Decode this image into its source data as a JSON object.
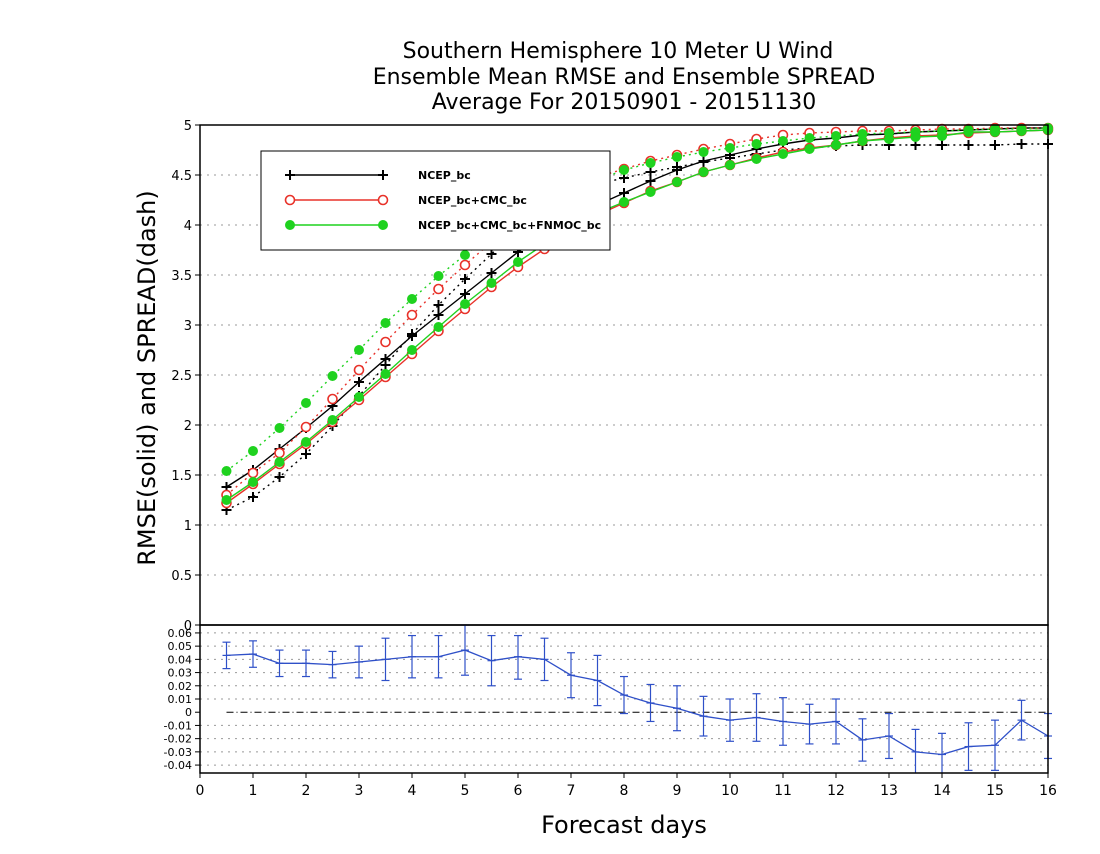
{
  "title_lines": [
    "Southern Hemisphere 10 Meter U Wind",
    "Ensemble Mean RMSE and Ensemble SPREAD",
    "Average For 20150901 - 20151130"
  ],
  "chart_data": [
    {
      "type": "line",
      "ylabel": "RMSE(solid) and SPREAD(dash)",
      "ylim": [
        0,
        5
      ],
      "yticks": [
        0,
        0.5,
        1,
        1.5,
        2,
        2.5,
        3,
        3.5,
        4,
        4.5,
        5
      ],
      "xlim": [
        0,
        16
      ],
      "grid": "horizontal dotted",
      "legend_position": "top-left",
      "x": [
        0.5,
        1,
        1.5,
        2,
        2.5,
        3,
        3.5,
        4,
        4.5,
        5,
        5.5,
        6,
        6.5,
        7,
        7.5,
        8,
        8.5,
        9,
        9.5,
        10,
        10.5,
        11,
        11.5,
        12,
        12.5,
        13,
        13.5,
        14,
        14.5,
        15,
        15.5,
        16
      ],
      "series": [
        {
          "name": "NCEP_bc",
          "color": "#000000",
          "marker": "plus",
          "rmse": [
            1.38,
            1.55,
            1.76,
            1.97,
            2.19,
            2.43,
            2.66,
            2.89,
            3.1,
            3.31,
            3.52,
            3.73,
            3.91,
            4.07,
            4.2,
            4.32,
            4.44,
            4.55,
            4.64,
            4.7,
            4.76,
            4.81,
            4.85,
            4.87,
            4.9,
            4.91,
            4.93,
            4.94,
            4.95,
            4.96,
            4.97,
            4.97
          ],
          "spread": [
            1.15,
            1.28,
            1.48,
            1.71,
            1.99,
            2.29,
            2.6,
            2.91,
            3.2,
            3.46,
            3.71,
            3.95,
            4.14,
            4.3,
            4.41,
            4.47,
            4.53,
            4.58,
            4.63,
            4.67,
            4.71,
            4.75,
            4.77,
            4.79,
            4.8,
            4.8,
            4.8,
            4.8,
            4.8,
            4.8,
            4.81,
            4.81
          ]
        },
        {
          "name": "NCEP_bc+CMC_bc",
          "color": "#e8322a",
          "marker": "open-circle",
          "rmse": [
            1.22,
            1.41,
            1.61,
            1.81,
            2.03,
            2.25,
            2.48,
            2.71,
            2.94,
            3.16,
            3.38,
            3.58,
            3.76,
            3.94,
            4.1,
            4.22,
            4.34,
            4.43,
            4.53,
            4.6,
            4.67,
            4.73,
            4.77,
            4.8,
            4.84,
            4.87,
            4.89,
            4.9,
            4.92,
            4.93,
            4.94,
            4.95
          ],
          "spread": [
            1.3,
            1.52,
            1.72,
            1.98,
            2.26,
            2.55,
            2.83,
            3.1,
            3.36,
            3.6,
            3.83,
            4.03,
            4.2,
            4.36,
            4.48,
            4.56,
            4.64,
            4.7,
            4.76,
            4.81,
            4.86,
            4.9,
            4.92,
            4.93,
            4.94,
            4.94,
            4.95,
            4.96,
            4.96,
            4.97,
            4.97,
            4.97
          ]
        },
        {
          "name": "NCEP_bc+CMC_bc+FNMOC_bc",
          "color": "#1fd21f",
          "marker": "filled-circle",
          "rmse": [
            1.25,
            1.43,
            1.63,
            1.83,
            2.05,
            2.28,
            2.51,
            2.75,
            2.98,
            3.21,
            3.42,
            3.63,
            3.81,
            3.97,
            4.12,
            4.23,
            4.33,
            4.43,
            4.53,
            4.6,
            4.66,
            4.71,
            4.76,
            4.8,
            4.84,
            4.86,
            4.88,
            4.89,
            4.93,
            4.93,
            4.94,
            4.95
          ],
          "spread": [
            1.54,
            1.74,
            1.97,
            2.22,
            2.49,
            2.75,
            3.02,
            3.26,
            3.49,
            3.7,
            3.9,
            4.07,
            4.21,
            4.34,
            4.45,
            4.55,
            4.62,
            4.68,
            4.73,
            4.77,
            4.81,
            4.84,
            4.87,
            4.89,
            4.91,
            4.92,
            4.93,
            4.94,
            4.95,
            4.96,
            4.96,
            4.97
          ]
        }
      ]
    },
    {
      "type": "line",
      "xlabel": "Forecast days",
      "ylim": [
        -0.046,
        0.066
      ],
      "yticks": [
        -0.04,
        -0.03,
        -0.02,
        -0.01,
        0,
        0.01,
        0.02,
        0.03,
        0.04,
        0.05,
        0.06
      ],
      "ytick_labels": [
        "-0.04",
        "-0.03",
        "-0.02",
        "-0.01",
        "0",
        "0.01",
        "0.02",
        "0.03",
        "0.04",
        "0.05",
        "0.06"
      ],
      "xlim": [
        0,
        16
      ],
      "xticks": [
        0,
        1,
        2,
        3,
        4,
        5,
        6,
        7,
        8,
        9,
        10,
        11,
        12,
        13,
        14,
        15,
        16
      ],
      "xtick_labels": [
        "0",
        "1",
        "2",
        "3",
        "4",
        "5",
        "6",
        "7",
        "8",
        "9",
        "10",
        "11",
        "12",
        "13",
        "14",
        "15",
        "16"
      ],
      "zero_line": true,
      "series": [
        {
          "color": "#2f50c8",
          "error_bars": true,
          "x": [
            0.5,
            1,
            1.5,
            2,
            2.5,
            3,
            3.5,
            4,
            4.5,
            5,
            5.5,
            6,
            6.5,
            7,
            7.5,
            8,
            8.5,
            9,
            9.5,
            10,
            10.5,
            11,
            11.5,
            12,
            12.5,
            13,
            13.5,
            14,
            14.5,
            15,
            15.5,
            16
          ],
          "values": [
            0.043,
            0.044,
            0.037,
            0.037,
            0.036,
            0.038,
            0.04,
            0.042,
            0.042,
            0.047,
            0.039,
            0.042,
            0.04,
            0.028,
            0.024,
            0.013,
            0.007,
            0.003,
            -0.003,
            -0.006,
            -0.004,
            -0.007,
            -0.009,
            -0.007,
            -0.021,
            -0.018,
            -0.03,
            -0.032,
            -0.026,
            -0.025,
            -0.006,
            -0.018
          ],
          "lower": [
            0.033,
            0.034,
            0.027,
            0.027,
            0.026,
            0.026,
            0.024,
            0.026,
            0.026,
            0.028,
            0.02,
            0.025,
            0.024,
            0.011,
            0.005,
            -0.001,
            -0.007,
            -0.014,
            -0.018,
            -0.022,
            -0.022,
            -0.025,
            -0.024,
            -0.024,
            -0.037,
            -0.035,
            -0.047,
            -0.048,
            -0.044,
            -0.044,
            -0.021,
            -0.035
          ],
          "upper": [
            0.053,
            0.054,
            0.047,
            0.047,
            0.046,
            0.05,
            0.056,
            0.058,
            0.058,
            0.066,
            0.058,
            0.058,
            0.056,
            0.045,
            0.043,
            0.027,
            0.021,
            0.02,
            0.012,
            0.01,
            0.014,
            0.011,
            0.006,
            0.01,
            -0.005,
            -0.001,
            -0.013,
            -0.016,
            -0.008,
            -0.006,
            0.009,
            -0.001
          ]
        }
      ]
    }
  ]
}
